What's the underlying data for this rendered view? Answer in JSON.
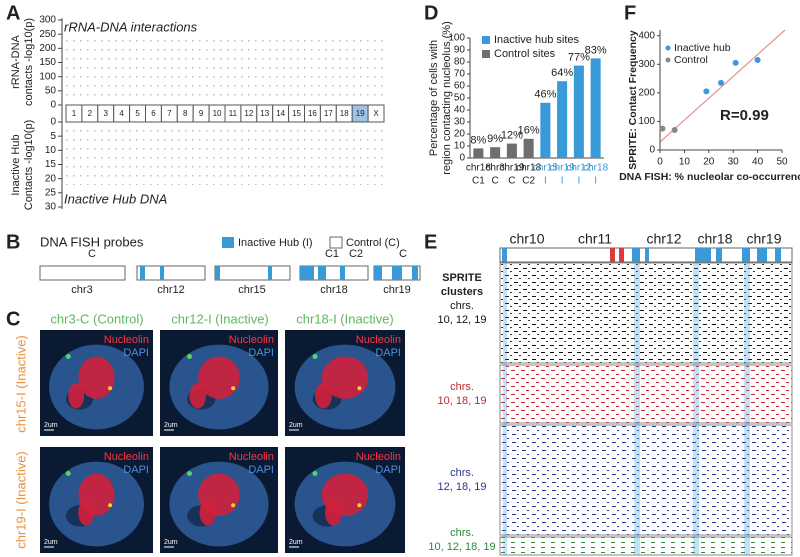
{
  "panel_labels": [
    "A",
    "B",
    "C",
    "D",
    "E",
    "F"
  ],
  "panel_a": {
    "top_title": "rRNA-DNA interactions",
    "bottom_title": "Inactive Hub DNA",
    "top_ylabel": [
      "rRNA-DNA",
      "contacts -log10(p)"
    ],
    "bottom_ylabel": [
      "Inactive Hub",
      "Contacts -log10(p)"
    ],
    "top_yticks": [
      300,
      250,
      200,
      150,
      100,
      50,
      0
    ],
    "bottom_yticks": [
      0,
      5,
      10,
      15,
      20,
      25,
      30
    ],
    "chromosomes": [
      "1",
      "2",
      "3",
      "4",
      "5",
      "6",
      "7",
      "8",
      "9",
      "10",
      "11",
      "12",
      "13",
      "14",
      "15",
      "16",
      "17",
      "18",
      "19",
      "X"
    ]
  },
  "panel_b": {
    "title": "DNA FISH probes",
    "legend": [
      "Inactive Hub (I)",
      "Control (C)"
    ],
    "chromosomes": [
      "chr3",
      "chr12",
      "chr15",
      "chr18",
      "chr19"
    ],
    "probes": [
      "C",
      "C1",
      "C2",
      "C"
    ]
  },
  "panel_c": {
    "columns": [
      "chr3-C (Control)",
      "chr12-I (Inactive)",
      "chr18-I (Inactive)"
    ],
    "rows": [
      "chr15-I (Inactive)",
      "chr19-I (Inactive)"
    ],
    "stain_labels": [
      "Nucleolin",
      "DAPI"
    ],
    "scale_label": "2um"
  },
  "panel_e": {
    "chromosomes": [
      "chr10",
      "chr11",
      "chr12",
      "chr18",
      "chr19"
    ],
    "side_title": [
      "SPRITE",
      "clusters"
    ],
    "groups": [
      {
        "lines": [
          "chrs.",
          "10, 12, 19"
        ],
        "color": "#111111"
      },
      {
        "lines": [
          "chrs.",
          "10, 18, 19"
        ],
        "color": "#c0282d"
      },
      {
        "lines": [
          "chrs.",
          "12, 18, 19"
        ],
        "color": "#2a3590"
      },
      {
        "lines": [
          "chrs.",
          "10, 12, 18, 19"
        ],
        "color": "#2a8a3a"
      }
    ]
  },
  "chart_data": [
    {
      "type": "bar",
      "y_label": [
        "Percentage of cells with",
        "region contacting nucleolus (%)"
      ],
      "categories": [
        [
          "chr18",
          "C1"
        ],
        [
          "chr3",
          "C"
        ],
        [
          "chr19",
          "C"
        ],
        [
          "chr18",
          "C2"
        ],
        [
          "chr15",
          "I"
        ],
        [
          "chr19",
          "I"
        ],
        [
          "chr12",
          "I"
        ],
        [
          "chr18",
          "I"
        ]
      ],
      "series": [
        {
          "name": "Inactive hub sites",
          "color": "#3a9ad9",
          "values": [
            null,
            null,
            null,
            null,
            46,
            64,
            77,
            83
          ],
          "value_labels": [
            null,
            null,
            null,
            null,
            "46%",
            "64%",
            "77%",
            "83%"
          ]
        },
        {
          "name": "Control sites",
          "color": "#6e6e6e",
          "values": [
            8,
            9,
            12,
            16,
            null,
            null,
            null,
            null
          ],
          "value_labels": [
            "8%",
            "9%",
            "12%",
            "16%",
            null,
            null,
            null,
            null
          ]
        }
      ],
      "ylim": [
        0,
        100
      ],
      "yticks": [
        0,
        10,
        20,
        30,
        40,
        50,
        60,
        70,
        80,
        90,
        100
      ]
    },
    {
      "type": "scatter",
      "x_label": "DNA FISH: % nucleolar co-occurrence",
      "y_label": "SPRITE: Contact Frequency",
      "annotation": "R=0.99",
      "series": [
        {
          "name": "Inactive hub",
          "color": "#3a9ad9",
          "x": [
            19,
            25,
            31,
            40
          ],
          "values": [
            205,
            235,
            305,
            315
          ]
        },
        {
          "name": "Control",
          "color": "#888888",
          "x": [
            1,
            6
          ],
          "values": [
            75,
            70
          ]
        }
      ],
      "xlim": [
        0,
        50
      ],
      "xticks": [
        0,
        10,
        20,
        30,
        40,
        50
      ],
      "ylim": [
        0,
        420
      ],
      "yticks": [
        0,
        100,
        200,
        300,
        400
      ]
    }
  ]
}
